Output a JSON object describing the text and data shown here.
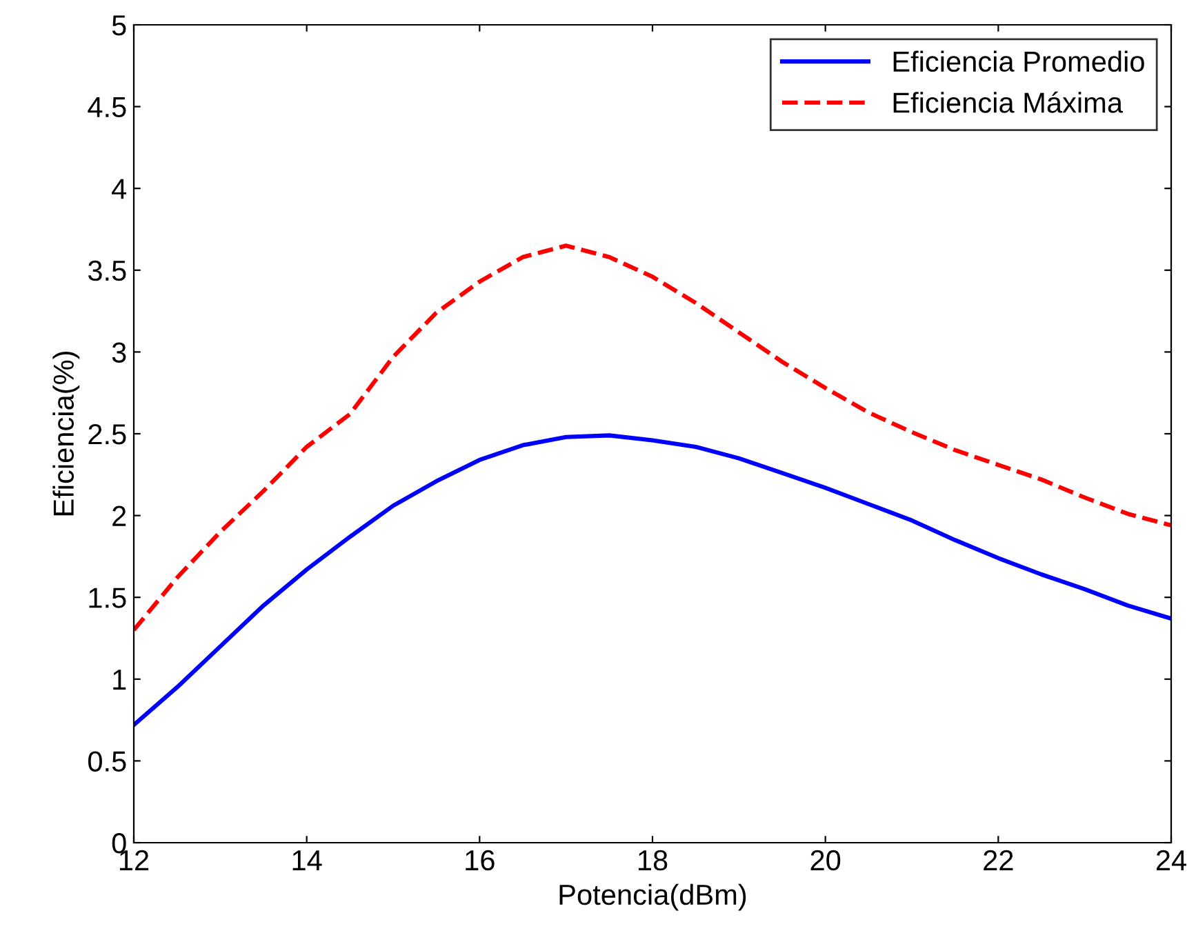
{
  "chart_data": {
    "type": "line",
    "xlabel": "Potencia(dBm)",
    "ylabel": "Eficiencia(%)",
    "x": [
      12,
      12.5,
      13,
      13.5,
      14,
      14.5,
      15,
      15.5,
      16,
      16.5,
      17,
      17.5,
      18,
      18.5,
      19,
      19.5,
      20,
      20.5,
      21,
      21.5,
      22,
      22.5,
      23,
      23.5,
      24
    ],
    "series": [
      {
        "name": "Eficiencia Promedio",
        "color": "#0000ff",
        "line_style": "solid",
        "values": [
          0.72,
          0.95,
          1.2,
          1.45,
          1.67,
          1.87,
          2.06,
          2.21,
          2.34,
          2.43,
          2.48,
          2.49,
          2.46,
          2.42,
          2.35,
          2.26,
          2.17,
          2.07,
          1.97,
          1.85,
          1.74,
          1.64,
          1.55,
          1.45,
          1.37
        ]
      },
      {
        "name": "Eficiencia Máxima",
        "color": "#ff0000",
        "line_style": "dashed",
        "values": [
          1.3,
          1.62,
          1.9,
          2.15,
          2.42,
          2.62,
          2.97,
          3.24,
          3.43,
          3.58,
          3.65,
          3.58,
          3.46,
          3.3,
          3.12,
          2.94,
          2.78,
          2.63,
          2.51,
          2.4,
          2.31,
          2.22,
          2.11,
          2.01,
          1.94
        ]
      }
    ],
    "xlim": [
      12,
      24
    ],
    "xticks": [
      12,
      14,
      16,
      18,
      20,
      22,
      24
    ],
    "ylim": [
      0,
      5
    ],
    "yticks": [
      0,
      0.5,
      1,
      1.5,
      2,
      2.5,
      3,
      3.5,
      4,
      4.5,
      5
    ],
    "grid": false,
    "legend": "top right",
    "marker": "none"
  }
}
